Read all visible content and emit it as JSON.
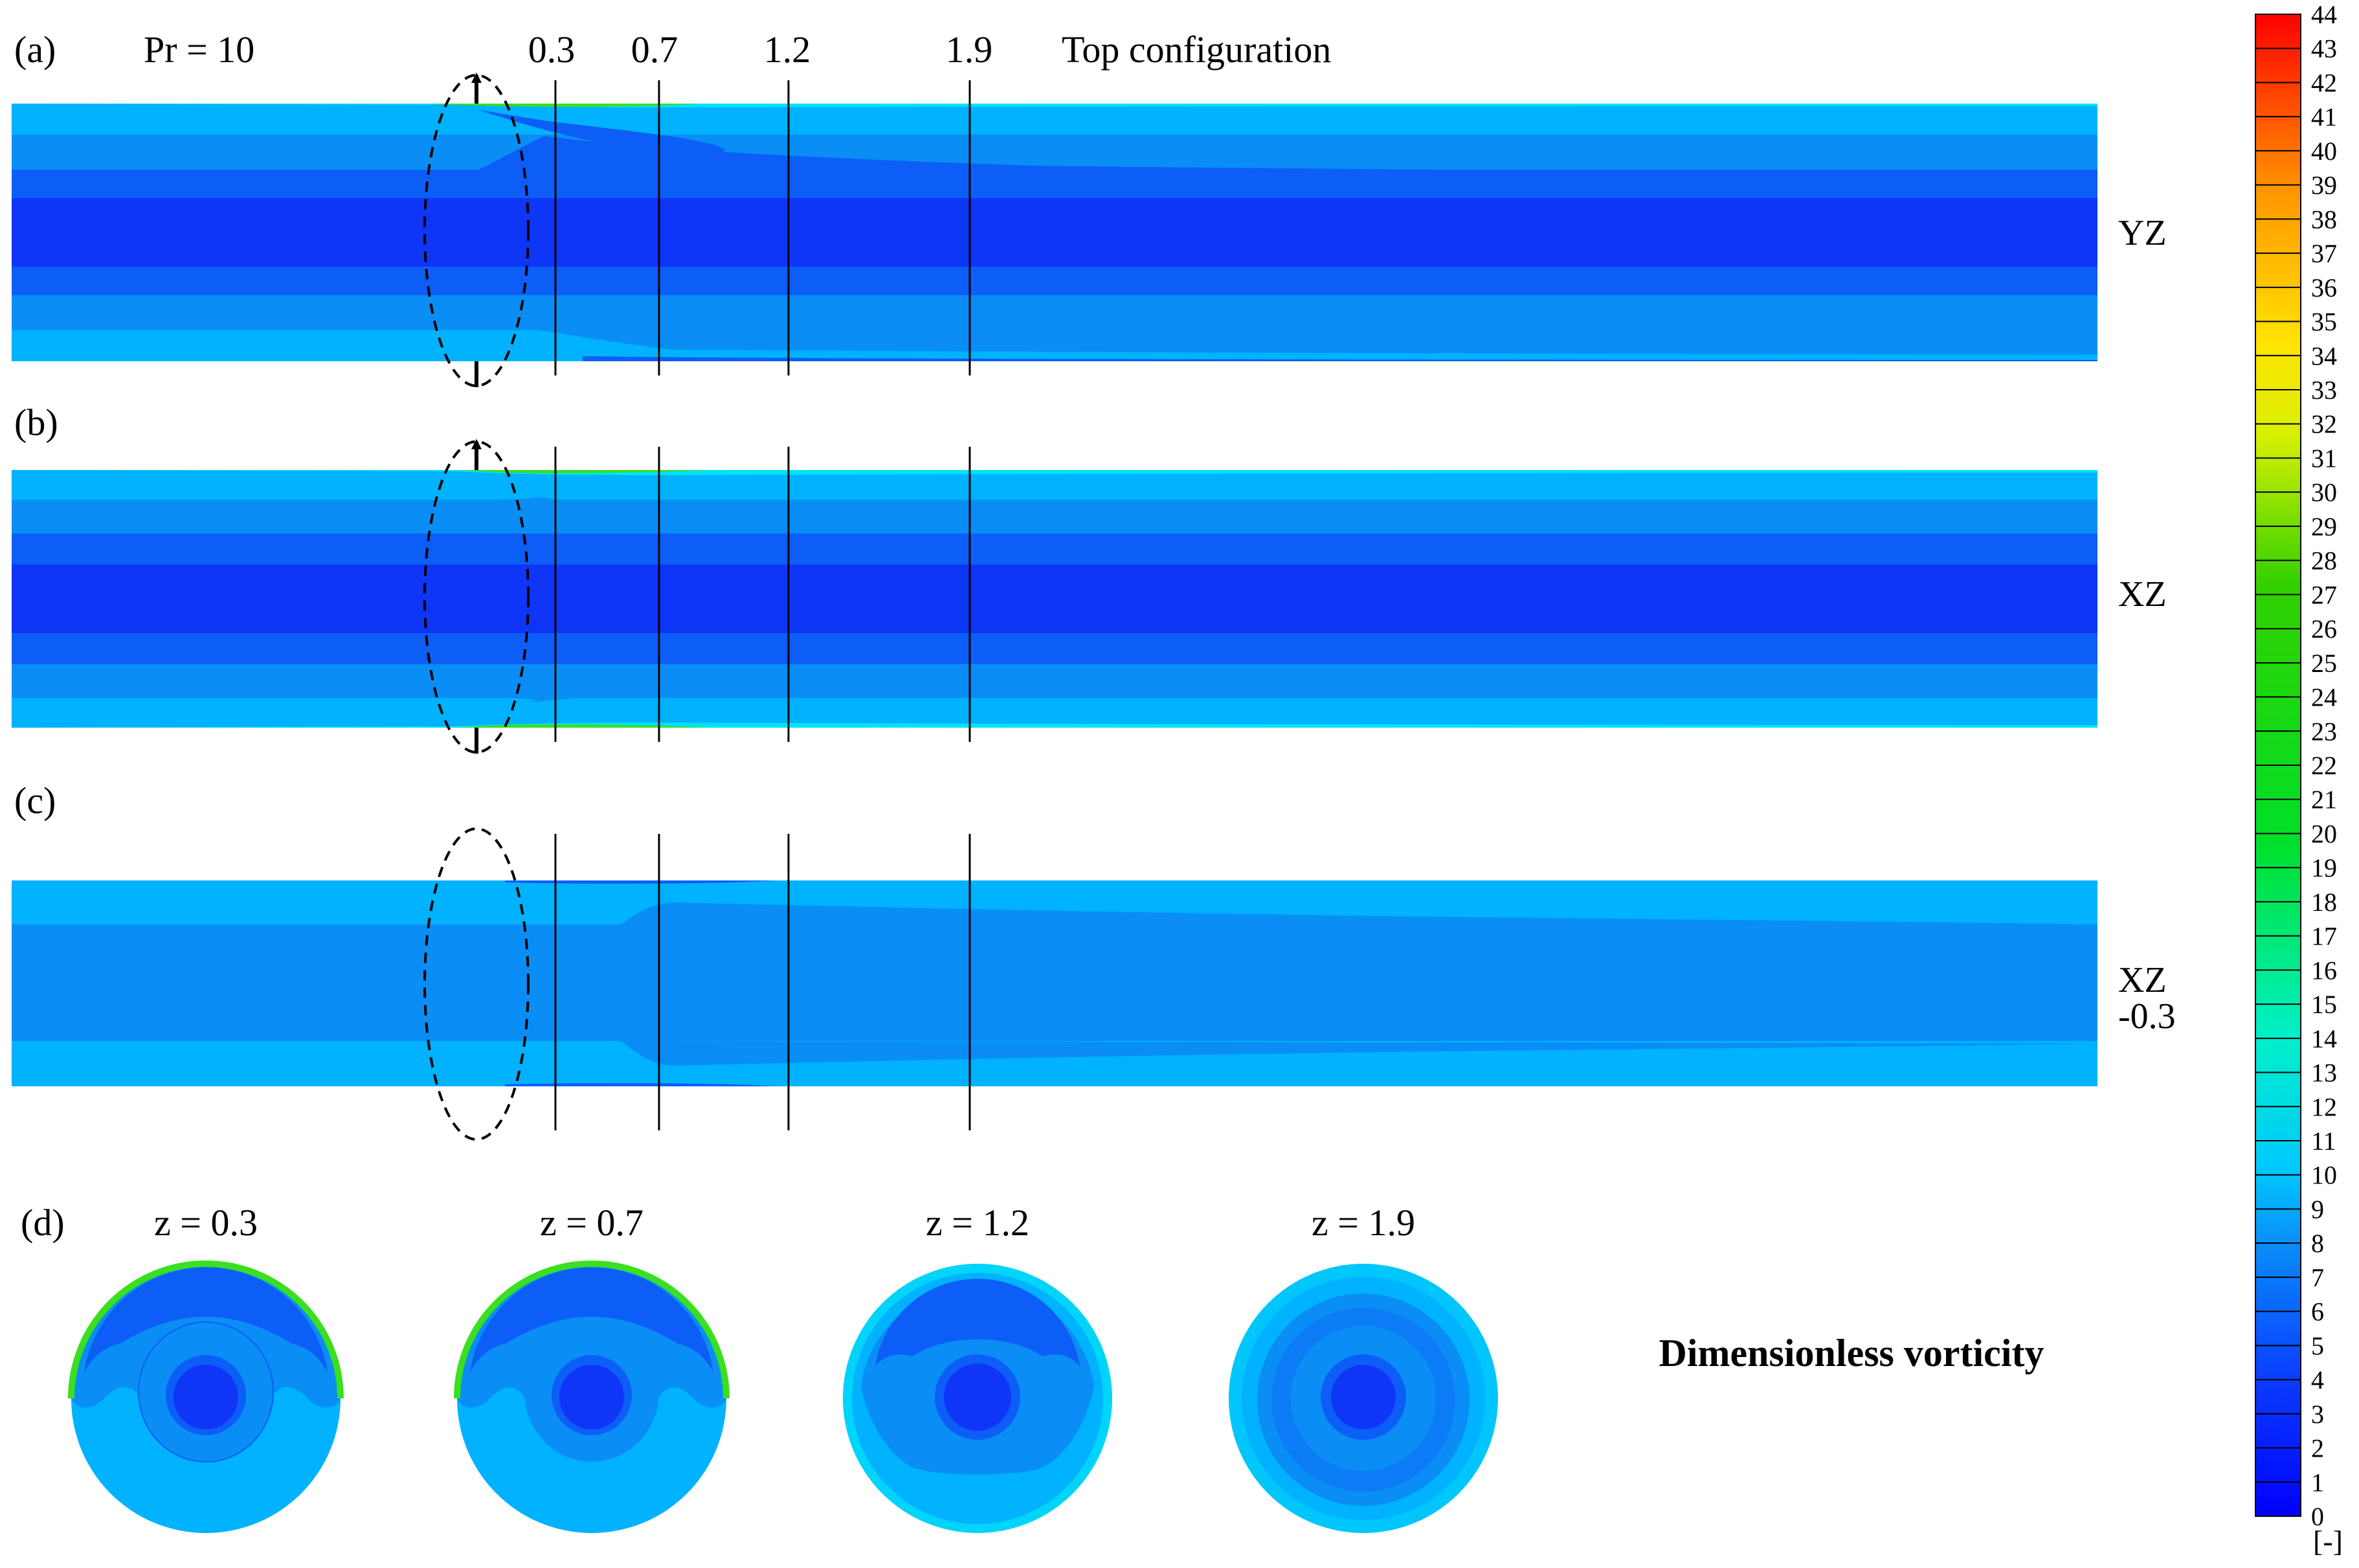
{
  "panel_labels": {
    "a": "(a)",
    "b": "(b)",
    "c": "(c)",
    "d": "(d)"
  },
  "prandtl": "Pr = 10",
  "configuration": "Top configuration",
  "stations": [
    "0.3",
    "0.7",
    "1.2",
    "1.9"
  ],
  "planes": {
    "a": "YZ",
    "b": "XZ",
    "c_line1": "XZ",
    "c_line2": "-0.3"
  },
  "cross_sections": [
    "z = 0.3",
    "z = 0.7",
    "z = 1.2",
    "z = 1.9"
  ],
  "quantity": "Dimensionless vorticity",
  "colorbar": {
    "ticks": [
      "0",
      "1",
      "2",
      "3",
      "4",
      "5",
      "6",
      "7",
      "8",
      "9",
      "10",
      "11",
      "12",
      "13",
      "14",
      "15",
      "16",
      "17",
      "18",
      "19",
      "20",
      "21",
      "22",
      "23",
      "24",
      "25",
      "26",
      "27",
      "28",
      "29",
      "30",
      "31",
      "32",
      "33",
      "34",
      "35",
      "36",
      "37",
      "38",
      "39",
      "40",
      "41",
      "42",
      "43",
      "44"
    ],
    "unit": "[-]",
    "min": 0,
    "max": 44
  },
  "colors": {
    "outer": "#00b2ff",
    "band": "#0a8ef5",
    "mid": "#0c5ef7",
    "core": "#0f36f6",
    "edge": "#00e3f5",
    "green": "#3adf1f"
  }
}
